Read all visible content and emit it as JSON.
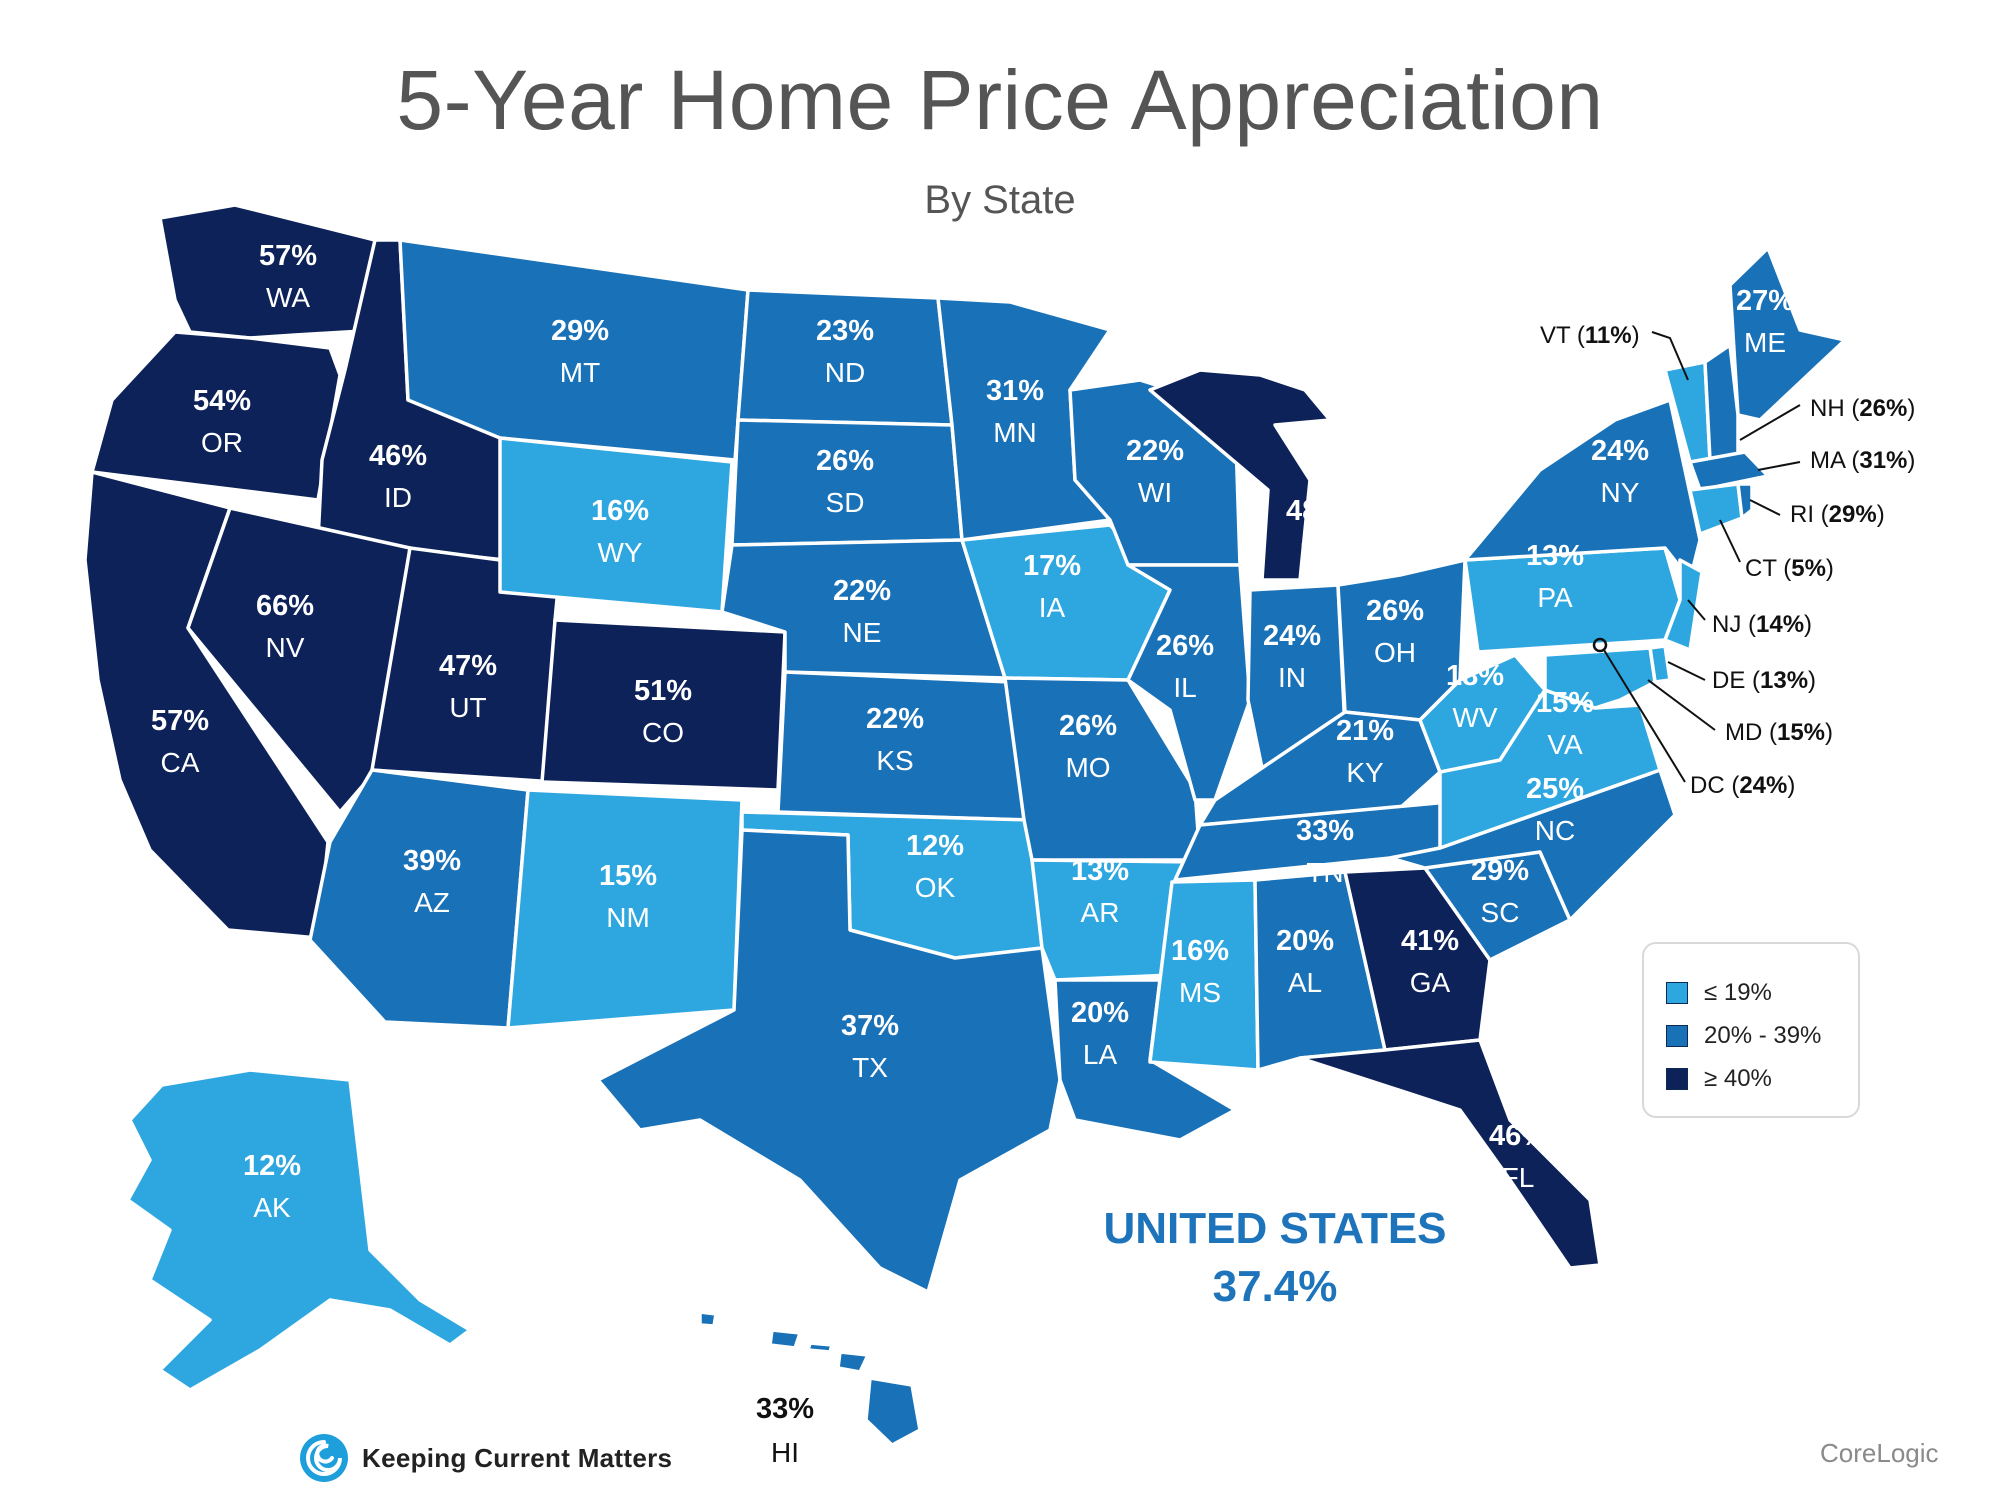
{
  "title": "5-Year Home Price Appreciation",
  "subtitle": "By State",
  "colors": {
    "low": "#2ea7e0",
    "mid": "#1971b8",
    "high": "#0d2259",
    "text_accent": "#1e74bb"
  },
  "states": [
    {
      "code": "WA",
      "pct": "57%",
      "tier": "high"
    },
    {
      "code": "OR",
      "pct": "54%",
      "tier": "high"
    },
    {
      "code": "CA",
      "pct": "57%",
      "tier": "high"
    },
    {
      "code": "ID",
      "pct": "46%",
      "tier": "high"
    },
    {
      "code": "NV",
      "pct": "66%",
      "tier": "high"
    },
    {
      "code": "UT",
      "pct": "47%",
      "tier": "high"
    },
    {
      "code": "AZ",
      "pct": "39%",
      "tier": "mid"
    },
    {
      "code": "MT",
      "pct": "29%",
      "tier": "mid"
    },
    {
      "code": "WY",
      "pct": "16%",
      "tier": "low"
    },
    {
      "code": "CO",
      "pct": "51%",
      "tier": "high"
    },
    {
      "code": "NM",
      "pct": "15%",
      "tier": "low"
    },
    {
      "code": "ND",
      "pct": "23%",
      "tier": "mid"
    },
    {
      "code": "SD",
      "pct": "26%",
      "tier": "mid"
    },
    {
      "code": "NE",
      "pct": "22%",
      "tier": "mid"
    },
    {
      "code": "KS",
      "pct": "22%",
      "tier": "mid"
    },
    {
      "code": "OK",
      "pct": "12%",
      "tier": "low"
    },
    {
      "code": "TX",
      "pct": "37%",
      "tier": "mid"
    },
    {
      "code": "MN",
      "pct": "31%",
      "tier": "mid"
    },
    {
      "code": "IA",
      "pct": "17%",
      "tier": "low"
    },
    {
      "code": "MO",
      "pct": "26%",
      "tier": "mid"
    },
    {
      "code": "AR",
      "pct": "13%",
      "tier": "low"
    },
    {
      "code": "LA",
      "pct": "20%",
      "tier": "mid"
    },
    {
      "code": "WI",
      "pct": "22%",
      "tier": "mid"
    },
    {
      "code": "IL",
      "pct": "26%",
      "tier": "mid"
    },
    {
      "code": "MI",
      "pct": "48%",
      "tier": "high"
    },
    {
      "code": "IN",
      "pct": "24%",
      "tier": "mid"
    },
    {
      "code": "OH",
      "pct": "26%",
      "tier": "mid"
    },
    {
      "code": "KY",
      "pct": "21%",
      "tier": "mid"
    },
    {
      "code": "TN",
      "pct": "33%",
      "tier": "mid"
    },
    {
      "code": "MS",
      "pct": "16%",
      "tier": "low"
    },
    {
      "code": "AL",
      "pct": "20%",
      "tier": "mid"
    },
    {
      "code": "GA",
      "pct": "41%",
      "tier": "high"
    },
    {
      "code": "FL",
      "pct": "46%",
      "tier": "high"
    },
    {
      "code": "SC",
      "pct": "29%",
      "tier": "mid"
    },
    {
      "code": "NC",
      "pct": "25%",
      "tier": "mid"
    },
    {
      "code": "VA",
      "pct": "15%",
      "tier": "low"
    },
    {
      "code": "WV",
      "pct": "18%",
      "tier": "low"
    },
    {
      "code": "PA",
      "pct": "13%",
      "tier": "low"
    },
    {
      "code": "NY",
      "pct": "24%",
      "tier": "mid"
    },
    {
      "code": "ME",
      "pct": "27%",
      "tier": "mid"
    },
    {
      "code": "AK",
      "pct": "12%",
      "tier": "low"
    }
  ],
  "callouts": [
    {
      "code": "VT",
      "pct": "11%",
      "tier": "low"
    },
    {
      "code": "NH",
      "pct": "26%",
      "tier": "mid"
    },
    {
      "code": "MA",
      "pct": "31%",
      "tier": "mid"
    },
    {
      "code": "RI",
      "pct": "29%",
      "tier": "mid"
    },
    {
      "code": "CT",
      "pct": "5%",
      "tier": "low"
    },
    {
      "code": "NJ",
      "pct": "14%",
      "tier": "low"
    },
    {
      "code": "DE",
      "pct": "13%",
      "tier": "low"
    },
    {
      "code": "MD",
      "pct": "15%",
      "tier": "low"
    },
    {
      "code": "DC",
      "pct": "24%",
      "tier": "mid"
    }
  ],
  "hawaii": {
    "code": "HI",
    "pct": "33%",
    "tier": "mid"
  },
  "legend": [
    {
      "label": "≤ 19%",
      "tier": "low"
    },
    {
      "label": "20% - 39%",
      "tier": "mid"
    },
    {
      "label": "≥ 40%",
      "tier": "high"
    }
  ],
  "national": {
    "name": "UNITED STATES",
    "value": "37.4%"
  },
  "brand": {
    "logo_text": "Keeping Current Matters",
    "logo_icon": "kcm-spiral-icon"
  },
  "source": "CoreLogic"
}
